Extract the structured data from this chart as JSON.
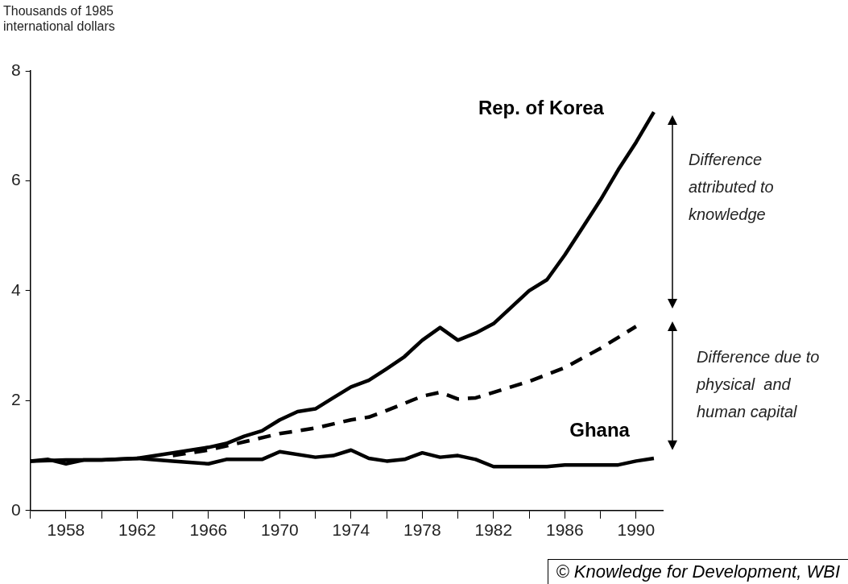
{
  "chart_data": {
    "type": "line",
    "ylabel": "Thousands of 1985 international dollars",
    "xlim": [
      1956,
      1991.5
    ],
    "xticks": [
      {
        "value": 1956,
        "label": null
      },
      1958,
      {
        "value": 1960,
        "label": null
      },
      1962,
      {
        "value": 1964,
        "label": null
      },
      1966,
      {
        "value": 1968,
        "label": null
      },
      1970,
      {
        "value": 1972,
        "label": null
      },
      1974,
      {
        "value": 1976,
        "label": null
      },
      1978,
      {
        "value": 1980,
        "label": null
      },
      1982,
      {
        "value": 1984,
        "label": null
      },
      1986,
      {
        "value": 1988,
        "label": null
      },
      1990
    ],
    "ylim": [
      0,
      8
    ],
    "yticks": [
      0,
      2,
      4,
      6,
      8
    ],
    "grid": false,
    "legend": false,
    "marker": "none",
    "series": [
      {
        "name": "Rep. of Korea",
        "color": "#000000",
        "line_style": "solid",
        "x": [
          1956,
          1958,
          1960,
          1962,
          1964,
          1966,
          1967,
          1968,
          1969,
          1970,
          1971,
          1972,
          1973,
          1974,
          1975,
          1976,
          1977,
          1978,
          1979,
          1980,
          1981,
          1982,
          1983,
          1984,
          1985,
          1986,
          1987,
          1988,
          1989,
          1990,
          1991
        ],
        "values": [
          0.9,
          0.92,
          0.92,
          0.95,
          1.05,
          1.15,
          1.22,
          1.35,
          1.45,
          1.65,
          1.8,
          1.85,
          2.05,
          2.25,
          2.37,
          2.58,
          2.8,
          3.1,
          3.33,
          3.1,
          3.23,
          3.4,
          3.7,
          4.0,
          4.2,
          4.65,
          5.15,
          5.65,
          6.2,
          6.7,
          7.25
        ]
      },
      {
        "color": "#000000",
        "line_style": "dashed",
        "x": [
          1964,
          1966,
          1968,
          1970,
          1972,
          1974,
          1975,
          1976,
          1977,
          1978,
          1979,
          1980,
          1981,
          1982,
          1984,
          1986,
          1988,
          1990
        ],
        "values": [
          1.0,
          1.1,
          1.25,
          1.4,
          1.5,
          1.65,
          1.7,
          1.82,
          1.95,
          2.08,
          2.15,
          2.03,
          2.05,
          2.15,
          2.35,
          2.6,
          2.95,
          3.35
        ]
      },
      {
        "name": "Ghana",
        "color": "#000000",
        "line_style": "solid",
        "x": [
          1956,
          1957,
          1958,
          1959,
          1960,
          1962,
          1964,
          1966,
          1967,
          1969,
          1970,
          1972,
          1973,
          1974,
          1975,
          1976,
          1977,
          1978,
          1979,
          1980,
          1981,
          1982,
          1985,
          1986,
          1989,
          1990,
          1991
        ],
        "values": [
          0.9,
          0.93,
          0.85,
          0.92,
          0.92,
          0.95,
          0.9,
          0.85,
          0.93,
          0.93,
          1.07,
          0.97,
          1.0,
          1.1,
          0.95,
          0.9,
          0.93,
          1.05,
          0.97,
          1.0,
          0.93,
          0.8,
          0.8,
          0.83,
          0.83,
          0.9,
          0.95
        ]
      }
    ],
    "annotations": [
      "Difference attributed to knowledge",
      "Difference due to physical  and human capital",
      "© Knowledge for Development, WBI"
    ]
  }
}
